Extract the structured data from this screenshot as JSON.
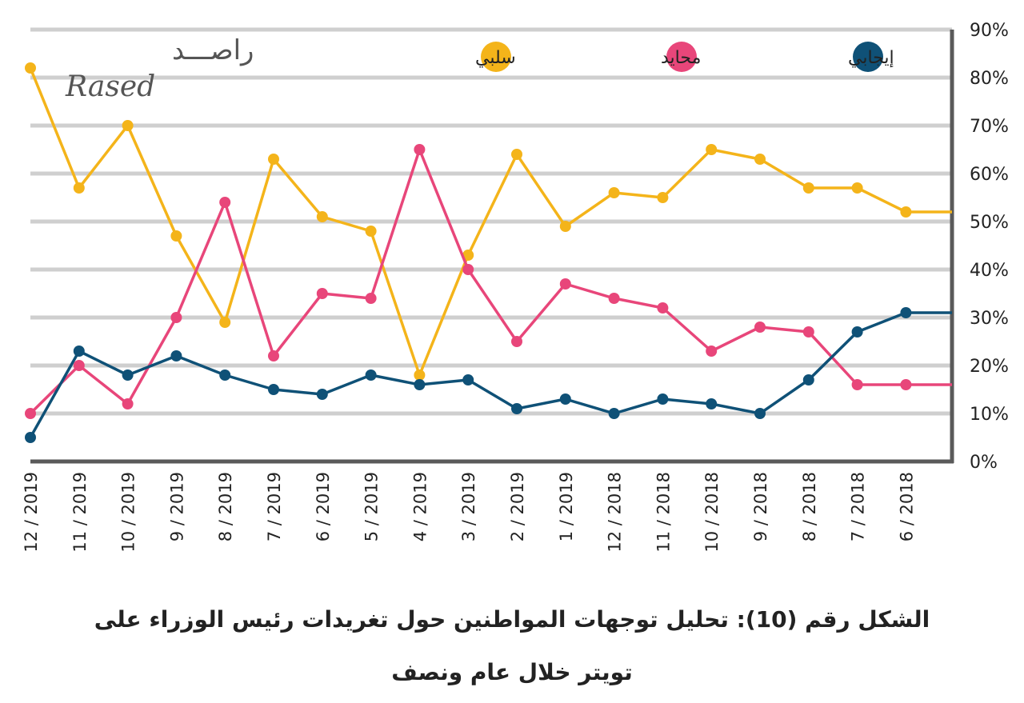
{
  "logo": {
    "arabic": "راصـــد",
    "latin": "Rased"
  },
  "caption": {
    "line1": "الشكل رقم (10): تحليل توجهات المواطنين حول تغريدات رئيس الوزراء على",
    "line2": "تويتر خلال عام ونصف"
  },
  "chart_data": {
    "type": "line",
    "x": [
      "12 / 2019",
      "11 / 2019",
      "10 / 2019",
      "9 / 2019",
      "8 / 2019",
      "7 / 2019",
      "6 / 2019",
      "5 / 2019",
      "4 / 2019",
      "3 / 2019",
      "2 / 2019",
      "1 / 2019",
      "12 / 2018",
      "11 / 2018",
      "10 / 2018",
      "9 / 2018",
      "8 / 2018",
      "7 / 2018",
      "6 / 2018"
    ],
    "y_ticks": [
      "0%",
      "10%",
      "20%",
      "30%",
      "40%",
      "50%",
      "60%",
      "70%",
      "80%",
      "90%"
    ],
    "ylim": [
      0,
      90
    ],
    "grid": true,
    "y_axis_side": "right",
    "legend_position": "top",
    "series": [
      {
        "name": "إيجابي",
        "color": "#0f5177",
        "values": [
          5,
          23,
          18,
          22,
          18,
          15,
          14,
          18,
          16,
          17,
          11,
          13,
          10,
          13,
          12,
          10,
          17,
          27,
          31
        ]
      },
      {
        "name": "محايد",
        "color": "#e8467a",
        "values": [
          10,
          20,
          12,
          30,
          54,
          22,
          35,
          34,
          65,
          40,
          25,
          37,
          34,
          32,
          23,
          28,
          27,
          16,
          16
        ]
      },
      {
        "name": "سلبي",
        "color": "#f4b41a",
        "values": [
          82,
          57,
          70,
          47,
          29,
          63,
          51,
          48,
          18,
          43,
          64,
          49,
          56,
          55,
          65,
          63,
          57,
          57,
          52
        ]
      }
    ]
  }
}
